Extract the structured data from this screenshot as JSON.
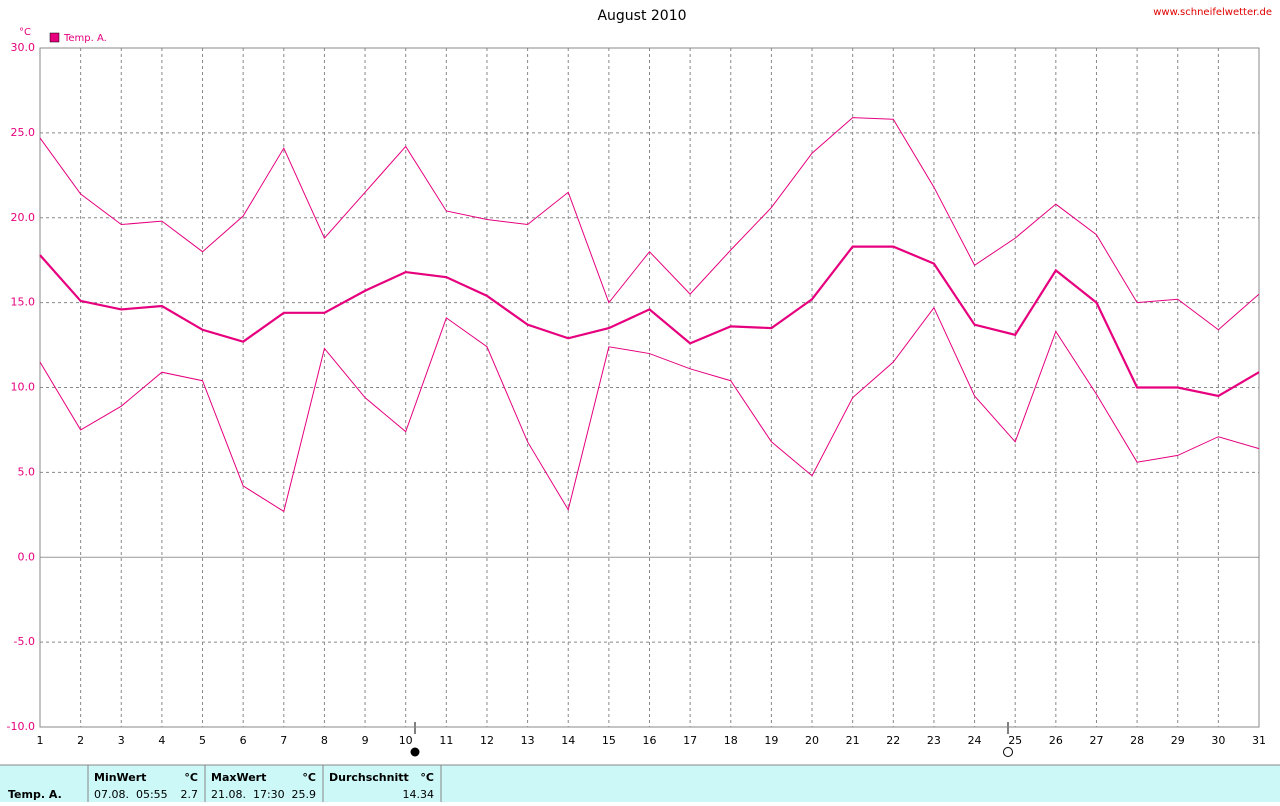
{
  "chart_data": {
    "type": "line",
    "title": "August 2010",
    "source": "www.schneifelwetter.de",
    "y_unit": "°C",
    "x": [
      1,
      2,
      3,
      4,
      5,
      6,
      7,
      8,
      9,
      10,
      11,
      12,
      13,
      14,
      15,
      16,
      17,
      18,
      19,
      20,
      21,
      22,
      23,
      24,
      25,
      26,
      27,
      28,
      29,
      30,
      31
    ],
    "xlim": [
      1,
      31
    ],
    "xticks": [
      1,
      2,
      3,
      4,
      5,
      6,
      7,
      8,
      9,
      10,
      11,
      12,
      13,
      14,
      15,
      16,
      17,
      18,
      19,
      20,
      21,
      22,
      23,
      24,
      25,
      26,
      27,
      28,
      29,
      30,
      31
    ],
    "ylim": [
      -10,
      30
    ],
    "yticks": [
      {
        "value": -10,
        "label": "-10.0"
      },
      {
        "value": -5,
        "label": "-5.0"
      },
      {
        "value": 0,
        "label": "0.0"
      },
      {
        "value": 5,
        "label": "5.0"
      },
      {
        "value": 10,
        "label": "10.0"
      },
      {
        "value": 15,
        "label": "15.0"
      },
      {
        "value": 20,
        "label": "20.0"
      },
      {
        "value": 25,
        "label": "25.0"
      },
      {
        "value": 30,
        "label": "30.0"
      }
    ],
    "grid": true,
    "legend": "top-left",
    "series": [
      {
        "name": "Temp. A.",
        "color": "#e6007e",
        "values": [
          17.8,
          15.1,
          14.6,
          14.8,
          13.4,
          12.7,
          14.4,
          14.4,
          15.7,
          16.8,
          16.5,
          15.4,
          13.7,
          12.9,
          13.5,
          14.6,
          12.6,
          13.6,
          13.5,
          15.2,
          18.3,
          18.3,
          17.3,
          13.7,
          13.1,
          16.9,
          15.0,
          10.0,
          10.0,
          9.5,
          10.9
        ]
      },
      {
        "color": "#e6007e",
        "values": [
          24.7,
          21.4,
          19.6,
          19.8,
          18.0,
          20.1,
          24.1,
          18.8,
          21.5,
          24.2,
          20.4,
          19.9,
          19.6,
          21.5,
          15.0,
          18.0,
          15.5,
          18.1,
          20.6,
          23.8,
          25.9,
          25.8,
          21.8,
          17.2,
          18.8,
          20.8,
          19.0,
          15.0,
          15.2,
          13.4,
          15.5
        ]
      },
      {
        "color": "#e6007e",
        "values": [
          11.5,
          7.5,
          8.9,
          10.9,
          10.4,
          4.2,
          2.7,
          12.3,
          9.4,
          7.4,
          14.1,
          12.4,
          6.8,
          2.8,
          12.4,
          12.0,
          11.1,
          10.4,
          6.8,
          4.8,
          9.4,
          11.5,
          14.7,
          9.5,
          6.8,
          13.3,
          9.6,
          5.6,
          6.0,
          7.1,
          6.4
        ]
      }
    ]
  },
  "summary": {
    "row_label": "Temp. A.",
    "columns": [
      {
        "header": "MinWert",
        "unit": "°C",
        "time": "07.08.  05:55",
        "value": 2.7
      },
      {
        "header": "MaxWert",
        "unit": "°C",
        "time": "21.08.  17:30",
        "value": 25.9
      },
      {
        "header": "Durchschnitt",
        "unit": "°C",
        "value": 14.34
      }
    ]
  }
}
